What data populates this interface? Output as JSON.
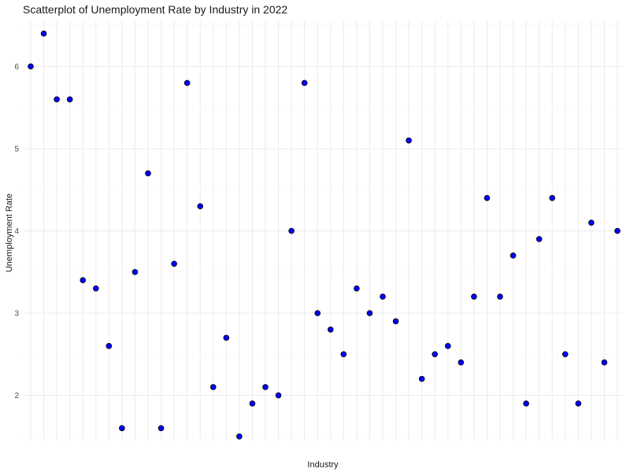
{
  "chart_data": {
    "type": "scatter",
    "title": "Scatterplot of Unemployment Rate by Industry in 2022",
    "xlabel": "Industry",
    "ylabel": "Unemployment Rate",
    "ylim": [
      1.45,
      6.55
    ],
    "yticks": [
      2,
      3,
      4,
      5,
      6
    ],
    "grid": true,
    "colors": {
      "point_fill": "#0000ff",
      "point_stroke": "#000000",
      "grid": "#ebebeb"
    },
    "series": [
      {
        "values": [
          6.0,
          6.4,
          5.6,
          5.6,
          3.4,
          3.3,
          2.6,
          1.6,
          3.5,
          4.7,
          1.6,
          3.6,
          5.8,
          4.3,
          2.1,
          2.7,
          1.5,
          1.9,
          2.1,
          2.0,
          4.0,
          5.8,
          3.0,
          2.8,
          2.5,
          3.3,
          3.0,
          3.2,
          2.9,
          5.1,
          2.2,
          2.5,
          2.6,
          2.4,
          3.2,
          4.4,
          3.2,
          3.7,
          1.9,
          3.9,
          4.4,
          2.5,
          1.9,
          4.1,
          2.4,
          4.0
        ]
      }
    ]
  }
}
